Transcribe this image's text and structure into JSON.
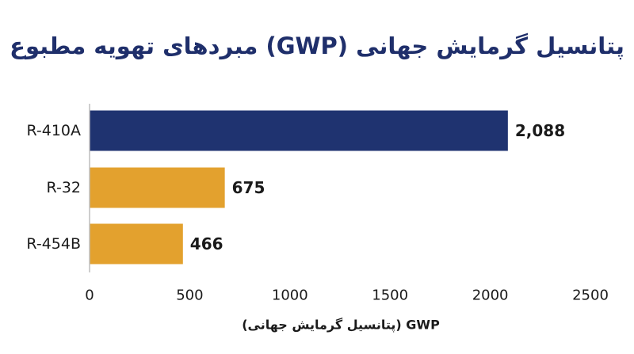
{
  "colors": {
    "title": "#1f2f6b",
    "highlight_bar": "#1f3370",
    "bar": "#e3a12e",
    "axis": "#bdbdbd",
    "text": "#1a1a1a",
    "background": "#ffffff"
  },
  "chart_data": {
    "type": "bar",
    "orientation": "horizontal",
    "title": "پتانسیل گرمایش جهانی (GWP) مبردهای تهویه مطبوع",
    "xlabel": "GWP (پتانسیل گرمایش جهانی)",
    "ylabel": "",
    "categories": [
      "R-410A",
      "R-32",
      "R-454B"
    ],
    "values": [
      2088,
      675,
      466
    ],
    "value_labels": [
      "2,088",
      "675",
      "466"
    ],
    "bar_colors": [
      "#1f3370",
      "#e3a12e",
      "#e3a12e"
    ],
    "xlim": [
      0,
      2500
    ],
    "xticks": [
      0,
      500,
      1000,
      1500,
      2000,
      2500
    ],
    "grid": false,
    "legend": "none"
  }
}
